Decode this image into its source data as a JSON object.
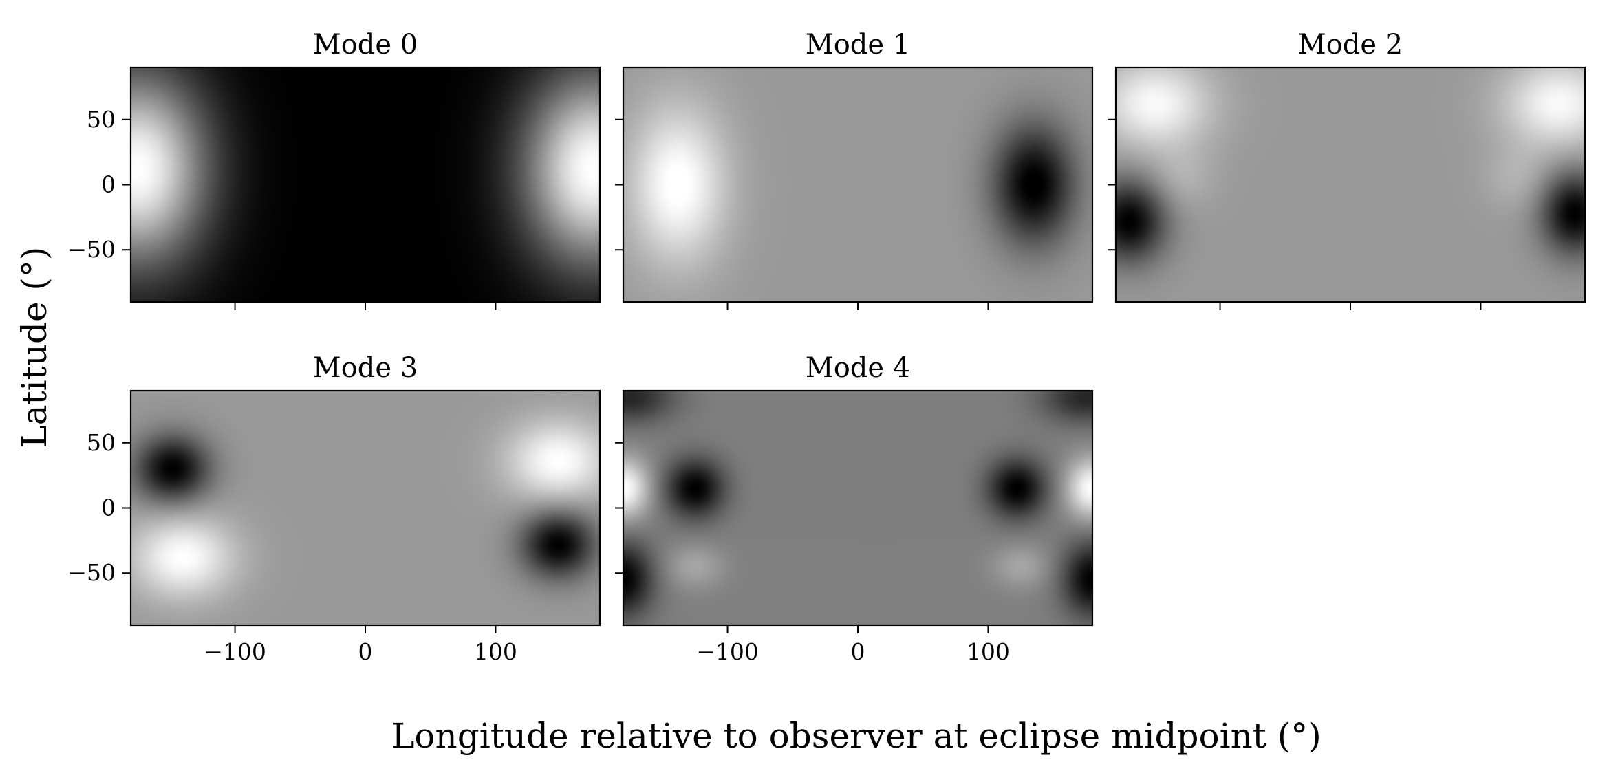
{
  "chart_data": {
    "type": "heatmap",
    "colormap": "grayscale",
    "shared_xlabel": "Longitude relative to observer at eclipse midpoint (°)",
    "shared_ylabel": "Latitude (°)",
    "xlim": [
      -180,
      180
    ],
    "ylim": [
      -90,
      90
    ],
    "xticks": [
      -100,
      0,
      100
    ],
    "yticks": [
      50,
      0,
      -50
    ],
    "xtick_labels": [
      "−100",
      "0",
      "100"
    ],
    "ytick_labels": [
      "50",
      "0",
      "−50"
    ],
    "grid": false,
    "panels": [
      {
        "title": "Mode 0",
        "background": 0.0,
        "blobs": [
          {
            "lon": -175,
            "lat": 12,
            "slon": 38,
            "slat": 52,
            "amp": 1.0
          },
          {
            "lon": 175,
            "lat": 12,
            "slon": 38,
            "slat": 52,
            "amp": 1.0
          }
        ]
      },
      {
        "title": "Mode 1",
        "background": 0.6,
        "blobs": [
          {
            "lon": -138,
            "lat": 0,
            "slon": 26,
            "slat": 42,
            "amp": 0.42
          },
          {
            "lon": 135,
            "lat": 0,
            "slon": 22,
            "slat": 32,
            "amp": -0.62
          }
        ]
      },
      {
        "title": "Mode 2",
        "background": 0.6,
        "blobs": [
          {
            "lon": -150,
            "lat": 62,
            "slon": 30,
            "slat": 24,
            "amp": 0.38
          },
          {
            "lon": 160,
            "lat": 62,
            "slon": 30,
            "slat": 24,
            "amp": 0.38
          },
          {
            "lon": -170,
            "lat": -28,
            "slon": 20,
            "slat": 22,
            "amp": -0.6
          },
          {
            "lon": 172,
            "lat": -22,
            "slon": 18,
            "slat": 22,
            "amp": -0.6
          },
          {
            "lon": -130,
            "lat": 5,
            "slon": 18,
            "slat": 18,
            "amp": 0.1
          },
          {
            "lon": 128,
            "lat": 5,
            "slon": 18,
            "slat": 18,
            "amp": 0.1
          }
        ]
      },
      {
        "title": "Mode 3",
        "background": 0.6,
        "blobs": [
          {
            "lon": -148,
            "lat": 30,
            "slon": 20,
            "slat": 18,
            "amp": -0.6
          },
          {
            "lon": -140,
            "lat": -38,
            "slon": 28,
            "slat": 22,
            "amp": 0.4
          },
          {
            "lon": 148,
            "lat": 36,
            "slon": 28,
            "slat": 22,
            "amp": 0.4
          },
          {
            "lon": 148,
            "lat": -28,
            "slon": 20,
            "slat": 18,
            "amp": -0.6
          }
        ]
      },
      {
        "title": "Mode 4",
        "background": 0.5,
        "blobs": [
          {
            "lon": -125,
            "lat": 15,
            "slon": 16,
            "slat": 16,
            "amp": -0.5
          },
          {
            "lon": 122,
            "lat": 15,
            "slon": 16,
            "slat": 16,
            "amp": -0.5
          },
          {
            "lon": -180,
            "lat": 15,
            "slon": 14,
            "slat": 16,
            "amp": 0.5
          },
          {
            "lon": 180,
            "lat": 15,
            "slon": 14,
            "slat": 16,
            "amp": 0.5
          },
          {
            "lon": -175,
            "lat": 85,
            "slon": 24,
            "slat": 14,
            "amp": -0.35
          },
          {
            "lon": 175,
            "lat": 85,
            "slon": 24,
            "slat": 14,
            "amp": -0.35
          },
          {
            "lon": -180,
            "lat": -55,
            "slon": 16,
            "slat": 20,
            "amp": -0.5
          },
          {
            "lon": 180,
            "lat": -55,
            "slon": 16,
            "slat": 20,
            "amp": -0.5
          },
          {
            "lon": -125,
            "lat": -45,
            "slon": 16,
            "slat": 12,
            "amp": 0.15
          },
          {
            "lon": 125,
            "lat": -45,
            "slon": 16,
            "slat": 12,
            "amp": 0.15
          }
        ]
      }
    ]
  }
}
